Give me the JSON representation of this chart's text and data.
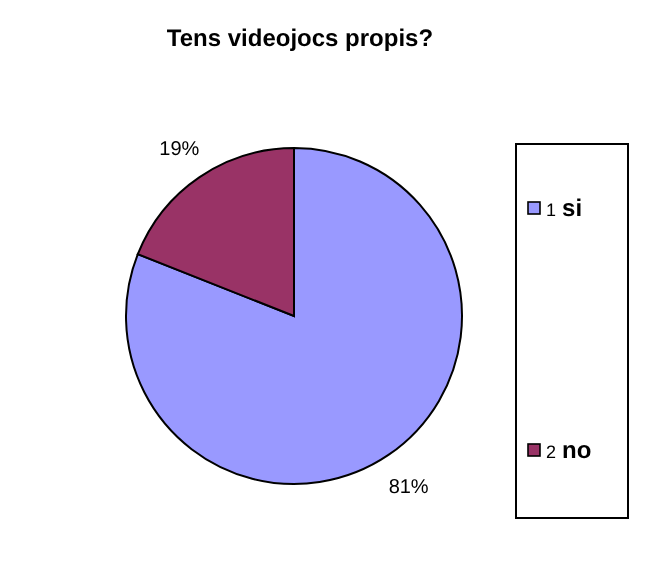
{
  "chart_data": {
    "type": "pie",
    "title": "Tens videojocs propis?",
    "categories": [
      "1 si",
      "2 no"
    ],
    "values": [
      81,
      19
    ],
    "colors": [
      "#9999ff",
      "#993366"
    ],
    "value_labels": [
      "81%",
      "19%"
    ],
    "legend": "right"
  }
}
